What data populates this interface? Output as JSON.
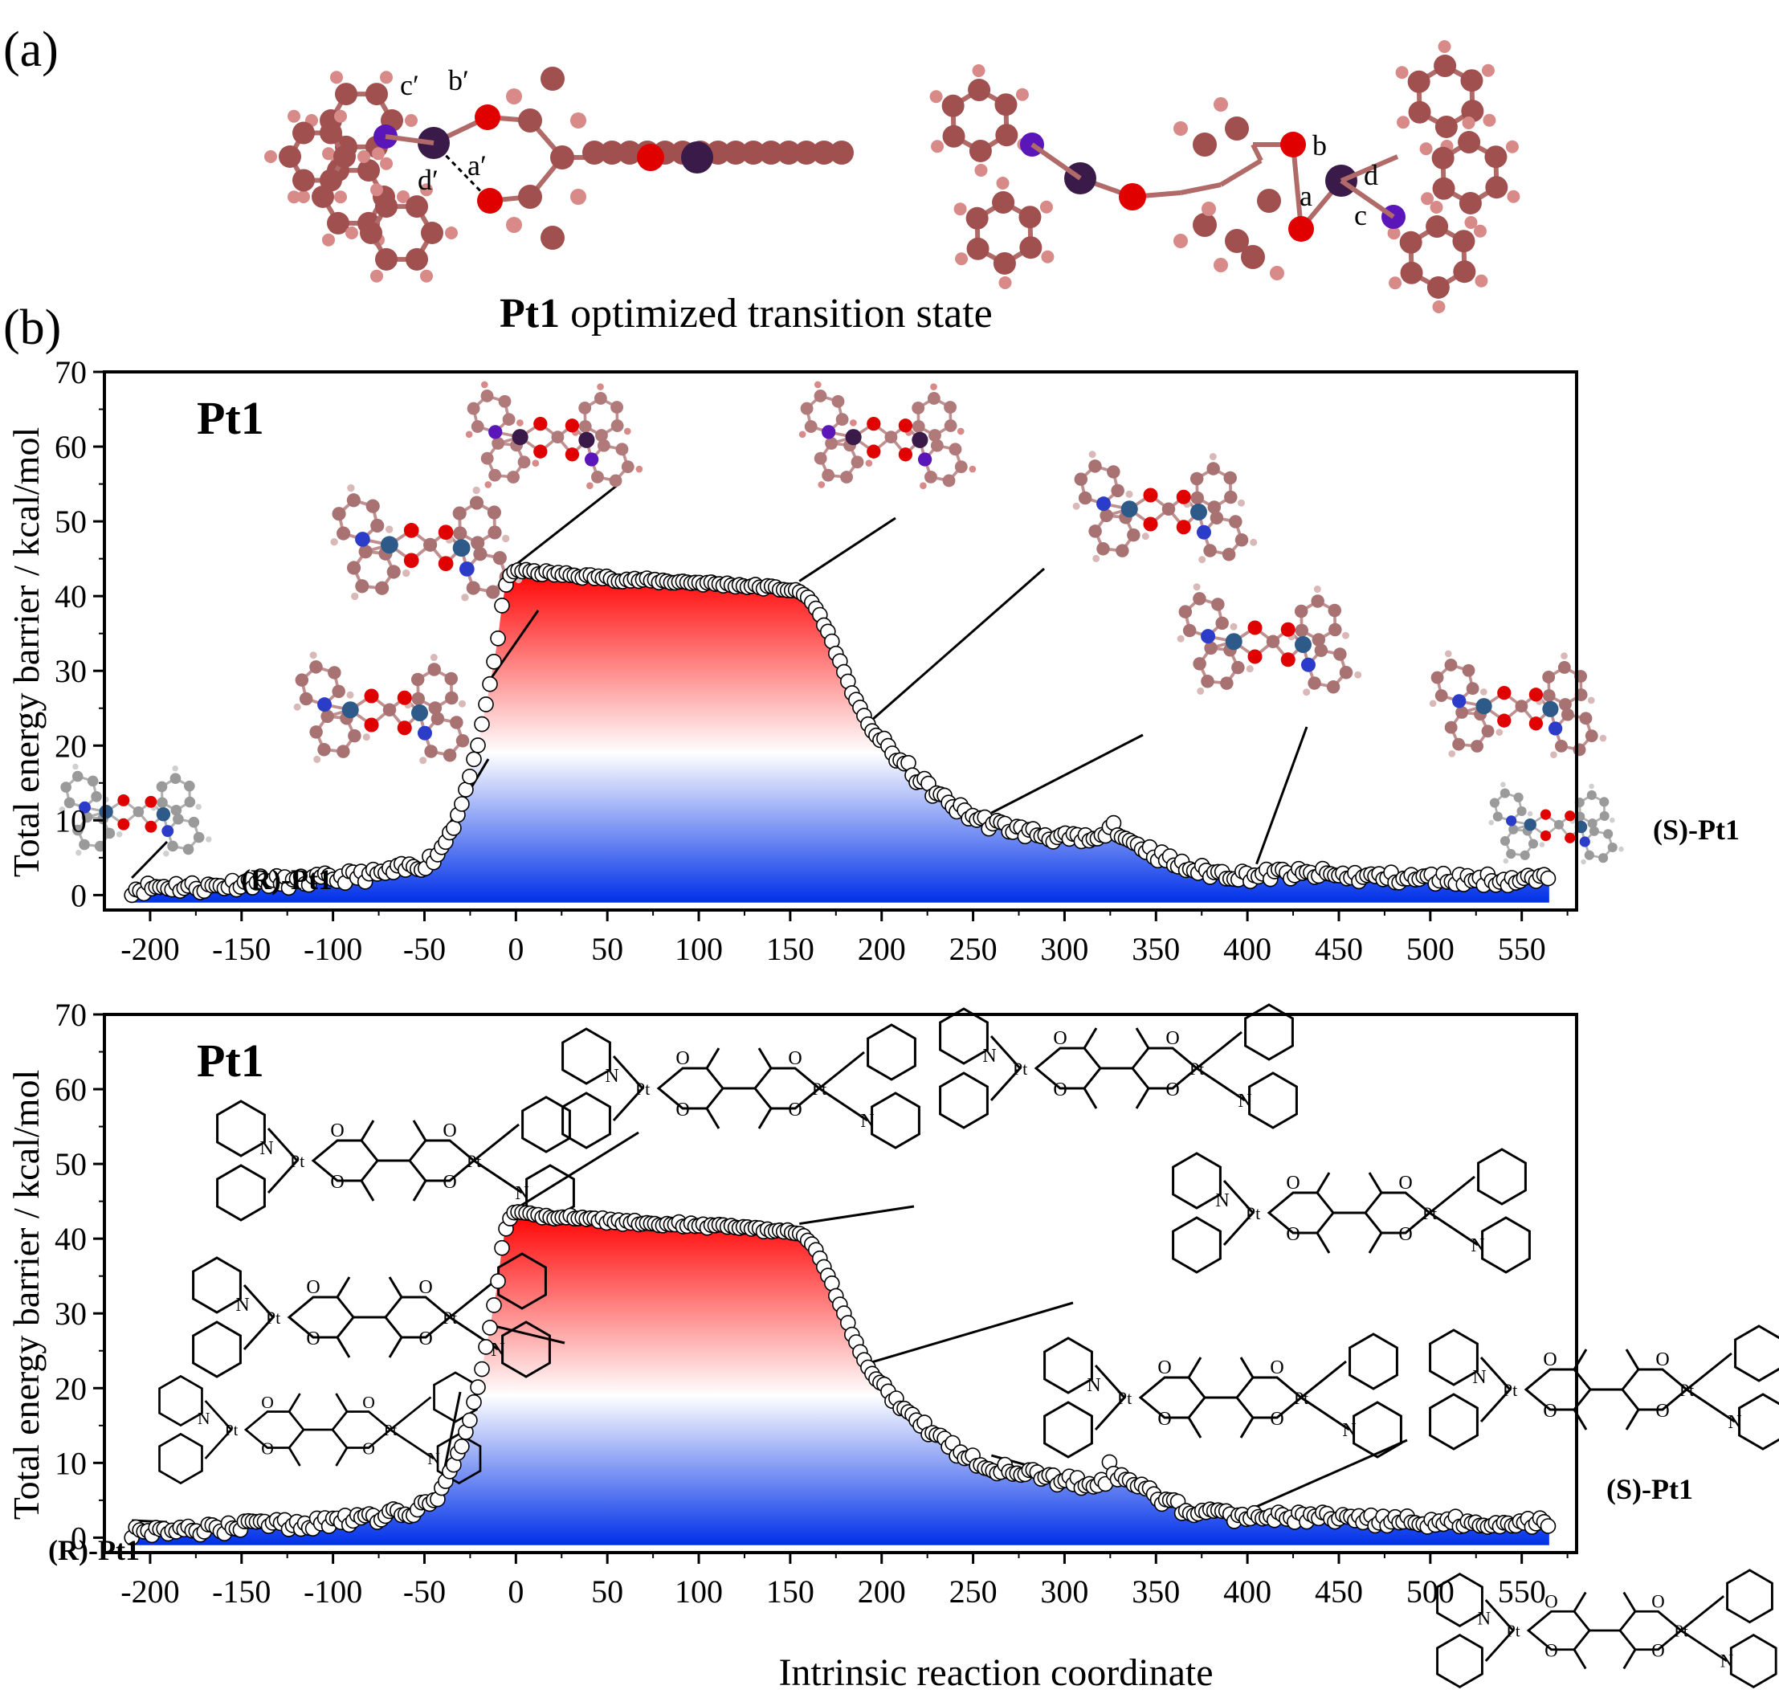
{
  "panel_a": {
    "label": "(a)",
    "caption_bold": "Pt1",
    "caption_rest": " optimized transition state",
    "bond_labels_left": [
      "c′",
      "b′",
      "a′",
      "d′"
    ],
    "bond_labels_right": [
      "b",
      "d",
      "a",
      "c"
    ]
  },
  "panel_b": {
    "label": "(b)"
  },
  "colors": {
    "carbon": "#a0504e",
    "oxygen": "#e00000",
    "nitrogen": "#5a16b8",
    "platinum": "#3a1a48",
    "hydrogen": "#d88a88",
    "nitrogen_alt": "#2a3cc8",
    "platinum_alt": "#2e5a8a",
    "carbon_grey": "#9a9a9a",
    "fill_top": "#ff0000",
    "fill_mid": "#ffffff",
    "fill_bottom": "#0030e8"
  },
  "chart_data": [
    {
      "type": "scatter",
      "title": "Pt1",
      "xlabel": "",
      "ylabel": "Total energy  barrier / kcal/mol",
      "xlim": [
        -225,
        580
      ],
      "ylim": [
        -2,
        70
      ],
      "xticks": [
        -200,
        -150,
        -100,
        -50,
        0,
        50,
        100,
        150,
        200,
        250,
        300,
        350,
        400,
        450,
        500,
        550
      ],
      "yticks": [
        0,
        10,
        20,
        30,
        40,
        50,
        60,
        70
      ],
      "annotations": [
        "(R)-Pt1",
        "(S)-Pt1"
      ],
      "x": [
        -210,
        -200,
        -190,
        -180,
        -170,
        -160,
        -150,
        -140,
        -130,
        -120,
        -110,
        -100,
        -90,
        -80,
        -70,
        -60,
        -50,
        -45,
        -40,
        -35,
        -30,
        -25,
        -20,
        -15,
        -10,
        -8,
        -6,
        -4,
        -2,
        0,
        10,
        20,
        30,
        40,
        50,
        60,
        70,
        80,
        90,
        100,
        110,
        120,
        130,
        140,
        150,
        155,
        160,
        165,
        170,
        175,
        180,
        185,
        190,
        195,
        200,
        205,
        210,
        215,
        220,
        230,
        240,
        250,
        260,
        270,
        280,
        290,
        300,
        310,
        320,
        330,
        340,
        350,
        360,
        370,
        380,
        390,
        400,
        410,
        420,
        430,
        440,
        450,
        460,
        470,
        480,
        490,
        500,
        510,
        520,
        530,
        540,
        550,
        560,
        565
      ],
      "series": [
        {
          "values": [
            0.8,
            1.0,
            1.2,
            1.1,
            1.0,
            1.3,
            1.6,
            1.9,
            1.8,
            1.7,
            2.0,
            2.2,
            2.5,
            2.6,
            3.0,
            3.5,
            4.2,
            5.0,
            6.5,
            9.0,
            12.0,
            16.0,
            21.0,
            27.0,
            34.0,
            38.0,
            41.0,
            42.5,
            43.2,
            43.5,
            43.2,
            43.0,
            42.8,
            42.6,
            42.4,
            42.2,
            42.1,
            42.0,
            41.9,
            41.8,
            41.6,
            41.5,
            41.3,
            41.1,
            40.9,
            40.5,
            39.8,
            38.0,
            35.5,
            32.5,
            29.5,
            26.5,
            24.0,
            22.0,
            20.5,
            19.2,
            18.0,
            16.8,
            15.5,
            13.5,
            11.8,
            10.5,
            9.5,
            9.0,
            8.4,
            8.0,
            7.5,
            7.4,
            7.2,
            7.6,
            6.8,
            5.5,
            4.2,
            3.4,
            3.0,
            2.8,
            2.6,
            2.7,
            2.9,
            2.7,
            2.8,
            2.6,
            2.5,
            2.4,
            2.3,
            2.2,
            2.2,
            2.2,
            2.1,
            2.1,
            2.0,
            2.0,
            2.1,
            1.8
          ]
        }
      ]
    },
    {
      "type": "scatter",
      "title": "Pt1",
      "xlabel": "Intrinsic reaction coordinate",
      "ylabel": "Total energy  barrier / kcal/mol",
      "xlim": [
        -225,
        580
      ],
      "ylim": [
        -2,
        70
      ],
      "xticks": [
        -200,
        -150,
        -100,
        -50,
        0,
        50,
        100,
        150,
        200,
        250,
        300,
        350,
        400,
        450,
        500,
        550
      ],
      "yticks": [
        0,
        10,
        20,
        30,
        40,
        50,
        60,
        70
      ],
      "annotations": [
        "(R)-Pt1",
        "(S)-Pt1"
      ],
      "x": [
        -210,
        -200,
        -190,
        -180,
        -170,
        -160,
        -150,
        -140,
        -130,
        -120,
        -110,
        -100,
        -90,
        -80,
        -70,
        -60,
        -50,
        -45,
        -40,
        -35,
        -30,
        -25,
        -20,
        -15,
        -10,
        -8,
        -6,
        -4,
        -2,
        0,
        10,
        20,
        30,
        40,
        50,
        60,
        70,
        80,
        90,
        100,
        110,
        120,
        130,
        140,
        150,
        155,
        160,
        165,
        170,
        175,
        180,
        185,
        190,
        195,
        200,
        205,
        210,
        215,
        220,
        230,
        240,
        250,
        260,
        270,
        280,
        290,
        300,
        310,
        320,
        330,
        340,
        350,
        360,
        370,
        380,
        390,
        400,
        410,
        420,
        430,
        440,
        450,
        460,
        470,
        480,
        490,
        500,
        510,
        520,
        530,
        540,
        550,
        560,
        565
      ],
      "series": [
        {
          "values": [
            0.8,
            1.0,
            1.2,
            1.1,
            1.0,
            1.3,
            1.6,
            1.9,
            1.8,
            1.7,
            2.0,
            2.2,
            2.5,
            2.6,
            3.0,
            3.5,
            4.2,
            5.0,
            6.5,
            9.0,
            12.0,
            16.0,
            21.0,
            27.0,
            34.0,
            38.0,
            41.0,
            42.5,
            43.2,
            43.5,
            43.2,
            43.0,
            42.8,
            42.6,
            42.4,
            42.2,
            42.1,
            42.0,
            41.9,
            41.8,
            41.6,
            41.5,
            41.3,
            41.1,
            40.9,
            40.5,
            39.8,
            38.0,
            35.5,
            32.5,
            29.5,
            26.5,
            24.0,
            22.0,
            20.5,
            19.2,
            18.0,
            16.8,
            15.5,
            13.5,
            11.8,
            10.5,
            9.5,
            9.0,
            8.4,
            8.0,
            7.5,
            7.4,
            7.2,
            7.6,
            6.8,
            5.5,
            4.2,
            3.4,
            3.0,
            2.8,
            2.6,
            2.7,
            2.9,
            2.7,
            2.8,
            2.6,
            2.5,
            2.4,
            2.3,
            2.2,
            2.2,
            2.2,
            2.1,
            2.1,
            2.0,
            2.0,
            2.1,
            1.8
          ]
        }
      ]
    }
  ],
  "structure_labels": {
    "pt": "Pt",
    "n": "N",
    "o": "O"
  }
}
